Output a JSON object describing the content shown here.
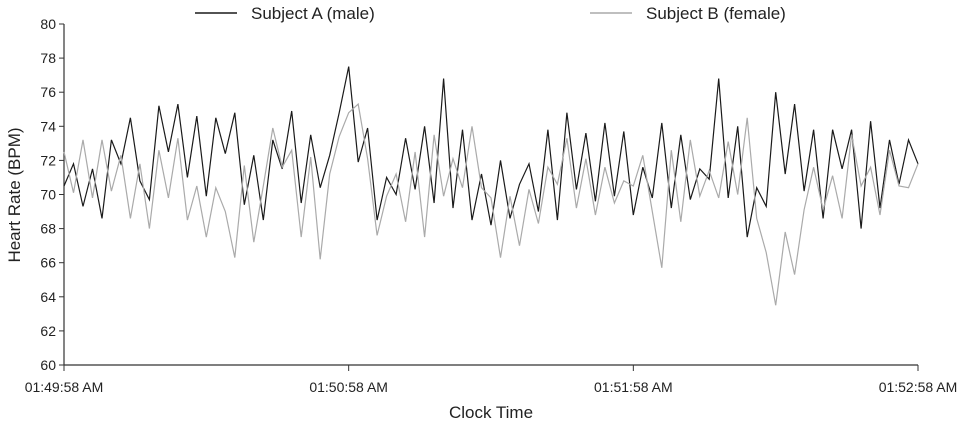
{
  "chart_data": {
    "type": "line",
    "x_label": "Clock Time",
    "y_label": "Heart Rate (BPM)",
    "x": [
      0,
      2,
      4,
      6,
      8,
      10,
      12,
      14,
      16,
      18,
      20,
      22,
      24,
      26,
      28,
      30,
      32,
      34,
      36,
      38,
      40,
      42,
      44,
      46,
      48,
      50,
      52,
      54,
      56,
      58,
      60,
      62,
      64,
      66,
      68,
      70,
      72,
      74,
      76,
      78,
      80,
      82,
      84,
      86,
      88,
      90,
      92,
      94,
      96,
      98,
      100,
      102,
      104,
      106,
      108,
      110,
      112,
      114,
      116,
      118,
      120,
      122,
      124,
      126,
      128,
      130,
      132,
      134,
      136,
      138,
      140,
      142,
      144,
      146,
      148,
      150,
      152,
      154,
      156,
      158,
      160,
      162,
      164,
      166,
      168,
      170,
      172,
      174,
      176,
      178,
      180
    ],
    "series": [
      {
        "name": "Subject A (male)",
        "color": "#1a1a1a",
        "values": [
          70.5,
          71.8,
          69.3,
          71.5,
          68.6,
          73.2,
          71.8,
          74.5,
          70.8,
          69.7,
          75.2,
          72.5,
          75.3,
          71.0,
          74.6,
          69.9,
          74.5,
          72.4,
          74.8,
          69.4,
          72.3,
          68.5,
          73.2,
          71.5,
          74.9,
          69.5,
          73.5,
          70.4,
          72.3,
          74.8,
          77.5,
          71.9,
          73.9,
          68.5,
          71.0,
          70.0,
          73.3,
          70.3,
          74.0,
          69.5,
          76.8,
          69.2,
          73.8,
          68.5,
          71.2,
          68.2,
          72.0,
          68.6,
          70.6,
          71.8,
          69.0,
          73.8,
          68.5,
          74.8,
          70.3,
          73.6,
          69.6,
          74.2,
          69.9,
          73.7,
          68.8,
          71.6,
          69.8,
          74.2,
          69.2,
          73.5,
          69.7,
          71.5,
          70.9,
          76.8,
          69.8,
          74.0,
          67.5,
          70.4,
          69.3,
          76.0,
          71.2,
          75.3,
          70.2,
          73.8,
          68.6,
          73.8,
          71.5,
          73.8,
          68.0,
          74.3,
          69.2,
          73.2,
          70.6,
          73.2,
          71.8
        ]
      },
      {
        "name": "Subject B (female)",
        "color": "#aaaaaa",
        "values": [
          72.5,
          70.1,
          73.2,
          69.8,
          73.2,
          70.2,
          72.3,
          68.6,
          71.8,
          68.0,
          72.6,
          69.8,
          73.3,
          68.5,
          70.5,
          67.5,
          70.4,
          69.0,
          66.3,
          71.7,
          67.2,
          70.5,
          73.9,
          71.6,
          72.6,
          67.5,
          72.2,
          66.2,
          71.2,
          73.4,
          74.8,
          75.3,
          72.1,
          67.6,
          69.9,
          71.2,
          68.4,
          72.5,
          67.5,
          73.5,
          69.9,
          72.1,
          70.4,
          74.0,
          70.4,
          69.8,
          66.3,
          69.9,
          67.0,
          70.3,
          68.3,
          71.6,
          70.6,
          73.3,
          69.2,
          72.1,
          68.8,
          71.6,
          69.5,
          70.8,
          70.5,
          72.3,
          69.0,
          65.7,
          72.6,
          68.4,
          73.2,
          69.9,
          71.4,
          69.8,
          73.1,
          70.0,
          74.5,
          68.6,
          66.6,
          63.5,
          67.8,
          65.3,
          69.1,
          71.6,
          69.1,
          71.1,
          68.6,
          73.5,
          70.5,
          71.6,
          68.8,
          72.6,
          70.5,
          70.4,
          71.8
        ]
      }
    ],
    "xlim": [
      0,
      180
    ],
    "xticks": [
      {
        "value": 0,
        "label": "01:49:58 AM"
      },
      {
        "value": 60,
        "label": "01:50:58 AM"
      },
      {
        "value": 120,
        "label": "01:51:58 AM"
      },
      {
        "value": 180,
        "label": "01:52:58 AM"
      }
    ],
    "ylim": [
      60,
      80
    ],
    "yticks": [
      60,
      62,
      64,
      66,
      68,
      70,
      72,
      74,
      76,
      78,
      80
    ],
    "grid": false,
    "legend": "top"
  }
}
